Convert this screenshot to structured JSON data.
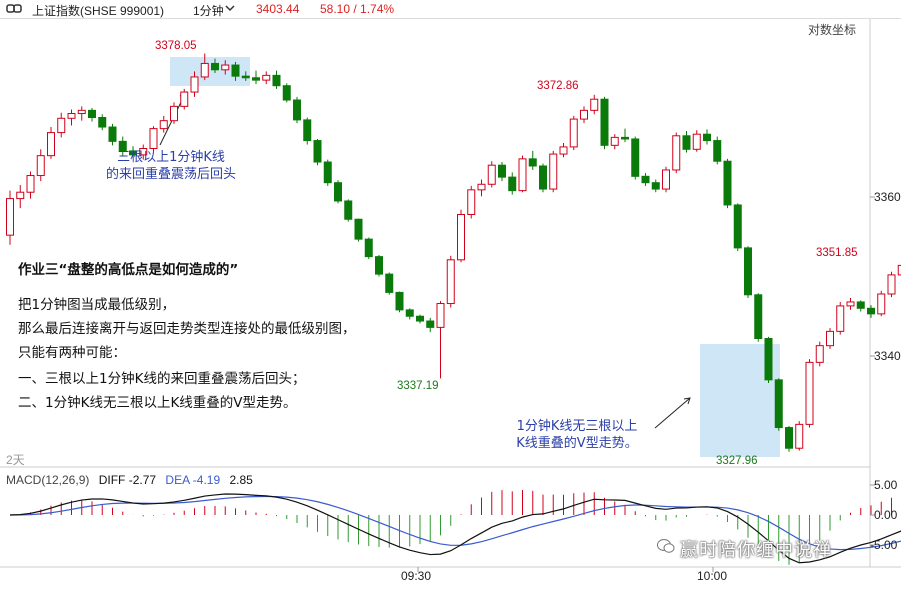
{
  "toolbar": {
    "symbol": "上证指数(SHSE 999001)",
    "period": "1分钟",
    "price": "3403.44",
    "change": "58.10 / 1.74%"
  },
  "chart": {
    "log_scale_button": "对数坐标",
    "days_label": "2天",
    "y_ticks": [
      "3360",
      "3340"
    ],
    "x_ticks": [
      "09:30",
      "10:00"
    ],
    "price_labels": {
      "high1": "3378.05",
      "high2": "3372.86",
      "low1": "3337.19",
      "low2": "3327.96",
      "last": "3351.85"
    },
    "annotation_left": [
      "三根以上1分钟K线",
      "的来回重叠震荡后回头"
    ],
    "annotation_right": [
      "1分钟K线无三根以上",
      "K线重叠的V型走势。"
    ]
  },
  "notes": {
    "title": "作业三“盘整的高低点是如何造成的”",
    "lines": [
      "把1分钟图当成最低级别，",
      "那么最后连接离开与返回走势类型连接处的最低级别图，",
      "只能有两种可能：",
      "一、三根以上1分钟K线的来回重叠震荡后回头；",
      "二、1分钟K线无三根以上K线重叠的V型走势。"
    ]
  },
  "macd": {
    "name": "MACD(12,26,9)",
    "diff": "DIFF -2.77",
    "dea": "DEA -4.19",
    "macd_value": "2.85",
    "y_ticks": [
      "5.00",
      "0.00",
      "-5.00"
    ]
  },
  "watermark": "赢时陪你缠中说禅",
  "colors": {
    "up": "#d0021b",
    "down": "#0a7a0a",
    "highlight": "#cfe6f7",
    "diff_line": "#111111",
    "dea_line": "#3a5bd0"
  },
  "chart_data": {
    "type": "candlestick",
    "candles": [
      {
        "o": 3355.2,
        "h": 3360.8,
        "l": 3354.0,
        "c": 3359.8
      },
      {
        "o": 3359.8,
        "h": 3361.5,
        "l": 3358.6,
        "c": 3360.6
      },
      {
        "o": 3360.6,
        "h": 3363.2,
        "l": 3359.8,
        "c": 3362.7
      },
      {
        "o": 3362.7,
        "h": 3366.0,
        "l": 3362.0,
        "c": 3365.2
      },
      {
        "o": 3365.2,
        "h": 3368.8,
        "l": 3364.8,
        "c": 3368.1
      },
      {
        "o": 3368.1,
        "h": 3370.6,
        "l": 3367.5,
        "c": 3369.9
      },
      {
        "o": 3369.9,
        "h": 3371.0,
        "l": 3369.0,
        "c": 3370.5
      },
      {
        "o": 3370.5,
        "h": 3371.4,
        "l": 3369.6,
        "c": 3370.9
      },
      {
        "o": 3370.9,
        "h": 3371.2,
        "l": 3369.5,
        "c": 3370.0
      },
      {
        "o": 3370.0,
        "h": 3370.4,
        "l": 3368.4,
        "c": 3368.8
      },
      {
        "o": 3368.8,
        "h": 3369.2,
        "l": 3366.5,
        "c": 3367.0
      },
      {
        "o": 3367.0,
        "h": 3367.6,
        "l": 3365.2,
        "c": 3365.8
      },
      {
        "o": 3365.8,
        "h": 3366.4,
        "l": 3364.9,
        "c": 3365.3
      },
      {
        "o": 3365.3,
        "h": 3366.6,
        "l": 3364.7,
        "c": 3366.1
      },
      {
        "o": 3366.1,
        "h": 3368.9,
        "l": 3365.8,
        "c": 3368.6
      },
      {
        "o": 3368.6,
        "h": 3370.2,
        "l": 3368.1,
        "c": 3369.6
      },
      {
        "o": 3369.6,
        "h": 3371.9,
        "l": 3369.2,
        "c": 3371.4
      },
      {
        "o": 3371.4,
        "h": 3373.6,
        "l": 3371.0,
        "c": 3373.2
      },
      {
        "o": 3373.2,
        "h": 3375.8,
        "l": 3372.6,
        "c": 3375.1
      },
      {
        "o": 3375.1,
        "h": 3378.05,
        "l": 3374.7,
        "c": 3376.8
      },
      {
        "o": 3376.8,
        "h": 3377.4,
        "l": 3375.6,
        "c": 3376.0
      },
      {
        "o": 3376.0,
        "h": 3377.2,
        "l": 3375.4,
        "c": 3376.6
      },
      {
        "o": 3376.6,
        "h": 3377.0,
        "l": 3374.6,
        "c": 3375.2
      },
      {
        "o": 3375.2,
        "h": 3375.8,
        "l": 3374.6,
        "c": 3375.0
      },
      {
        "o": 3375.0,
        "h": 3375.9,
        "l": 3374.2,
        "c": 3374.7
      },
      {
        "o": 3374.7,
        "h": 3375.8,
        "l": 3374.2,
        "c": 3375.3
      },
      {
        "o": 3375.3,
        "h": 3375.9,
        "l": 3373.6,
        "c": 3374.0
      },
      {
        "o": 3374.0,
        "h": 3374.3,
        "l": 3371.9,
        "c": 3372.2
      },
      {
        "o": 3372.2,
        "h": 3372.6,
        "l": 3369.3,
        "c": 3369.7
      },
      {
        "o": 3369.7,
        "h": 3370.0,
        "l": 3366.6,
        "c": 3367.1
      },
      {
        "o": 3367.1,
        "h": 3367.3,
        "l": 3364.0,
        "c": 3364.4
      },
      {
        "o": 3364.4,
        "h": 3364.7,
        "l": 3361.4,
        "c": 3361.8
      },
      {
        "o": 3361.8,
        "h": 3362.1,
        "l": 3359.2,
        "c": 3359.5
      },
      {
        "o": 3359.5,
        "h": 3359.7,
        "l": 3356.9,
        "c": 3357.2
      },
      {
        "o": 3357.2,
        "h": 3357.3,
        "l": 3354.4,
        "c": 3354.7
      },
      {
        "o": 3354.7,
        "h": 3354.9,
        "l": 3352.2,
        "c": 3352.5
      },
      {
        "o": 3352.5,
        "h": 3352.7,
        "l": 3350.0,
        "c": 3350.3
      },
      {
        "o": 3350.3,
        "h": 3350.5,
        "l": 3347.7,
        "c": 3348.0
      },
      {
        "o": 3348.0,
        "h": 3348.1,
        "l": 3345.5,
        "c": 3345.8
      },
      {
        "o": 3345.8,
        "h": 3346.0,
        "l": 3344.6,
        "c": 3345.0
      },
      {
        "o": 3345.0,
        "h": 3345.2,
        "l": 3344.1,
        "c": 3344.4
      },
      {
        "o": 3344.4,
        "h": 3344.8,
        "l": 3343.0,
        "c": 3343.6
      },
      {
        "o": 3343.6,
        "h": 3346.9,
        "l": 3337.19,
        "c": 3346.6
      },
      {
        "o": 3346.6,
        "h": 3352.6,
        "l": 3346.1,
        "c": 3352.1
      },
      {
        "o": 3352.1,
        "h": 3358.4,
        "l": 3351.8,
        "c": 3357.8
      },
      {
        "o": 3357.8,
        "h": 3361.4,
        "l": 3357.3,
        "c": 3360.9
      },
      {
        "o": 3360.9,
        "h": 3362.2,
        "l": 3360.1,
        "c": 3361.6
      },
      {
        "o": 3361.6,
        "h": 3364.5,
        "l": 3361.2,
        "c": 3364.0
      },
      {
        "o": 3364.0,
        "h": 3364.4,
        "l": 3362.0,
        "c": 3362.5
      },
      {
        "o": 3362.5,
        "h": 3363.1,
        "l": 3360.3,
        "c": 3360.8
      },
      {
        "o": 3360.8,
        "h": 3365.2,
        "l": 3360.6,
        "c": 3364.8
      },
      {
        "o": 3364.8,
        "h": 3365.8,
        "l": 3363.4,
        "c": 3363.9
      },
      {
        "o": 3363.9,
        "h": 3364.2,
        "l": 3360.6,
        "c": 3361.0
      },
      {
        "o": 3361.0,
        "h": 3365.8,
        "l": 3360.6,
        "c": 3365.4
      },
      {
        "o": 3365.4,
        "h": 3366.8,
        "l": 3365.0,
        "c": 3366.3
      },
      {
        "o": 3366.3,
        "h": 3370.2,
        "l": 3365.9,
        "c": 3369.8
      },
      {
        "o": 3369.8,
        "h": 3371.4,
        "l": 3369.3,
        "c": 3370.9
      },
      {
        "o": 3370.9,
        "h": 3372.86,
        "l": 3370.4,
        "c": 3372.3
      },
      {
        "o": 3372.3,
        "h": 3372.6,
        "l": 3366.0,
        "c": 3366.5
      },
      {
        "o": 3366.5,
        "h": 3367.9,
        "l": 3366.0,
        "c": 3367.5
      },
      {
        "o": 3367.5,
        "h": 3368.6,
        "l": 3366.9,
        "c": 3367.3
      },
      {
        "o": 3367.3,
        "h": 3367.6,
        "l": 3362.2,
        "c": 3362.6
      },
      {
        "o": 3362.6,
        "h": 3363.0,
        "l": 3361.4,
        "c": 3361.8
      },
      {
        "o": 3361.8,
        "h": 3362.2,
        "l": 3360.6,
        "c": 3361.0
      },
      {
        "o": 3361.0,
        "h": 3363.8,
        "l": 3360.6,
        "c": 3363.4
      },
      {
        "o": 3363.4,
        "h": 3368.1,
        "l": 3363.0,
        "c": 3367.7
      },
      {
        "o": 3367.7,
        "h": 3368.3,
        "l": 3365.6,
        "c": 3366.0
      },
      {
        "o": 3366.0,
        "h": 3368.4,
        "l": 3365.7,
        "c": 3367.9
      },
      {
        "o": 3367.9,
        "h": 3368.5,
        "l": 3366.6,
        "c": 3367.1
      },
      {
        "o": 3367.1,
        "h": 3367.6,
        "l": 3364.1,
        "c": 3364.5
      },
      {
        "o": 3364.5,
        "h": 3364.8,
        "l": 3358.6,
        "c": 3359.0
      },
      {
        "o": 3359.0,
        "h": 3359.2,
        "l": 3353.2,
        "c": 3353.6
      },
      {
        "o": 3353.6,
        "h": 3353.8,
        "l": 3347.3,
        "c": 3347.7
      },
      {
        "o": 3347.7,
        "h": 3347.9,
        "l": 3341.8,
        "c": 3342.2
      },
      {
        "o": 3342.2,
        "h": 3342.4,
        "l": 3336.6,
        "c": 3337.0
      },
      {
        "o": 3337.0,
        "h": 3337.2,
        "l": 3330.6,
        "c": 3331.0
      },
      {
        "o": 3331.0,
        "h": 3331.2,
        "l": 3327.96,
        "c": 3328.4
      },
      {
        "o": 3328.4,
        "h": 3331.8,
        "l": 3328.1,
        "c": 3331.4
      },
      {
        "o": 3331.4,
        "h": 3339.6,
        "l": 3331.0,
        "c": 3339.2
      },
      {
        "o": 3339.2,
        "h": 3341.8,
        "l": 3338.7,
        "c": 3341.3
      },
      {
        "o": 3341.3,
        "h": 3343.5,
        "l": 3340.9,
        "c": 3343.1
      },
      {
        "o": 3343.1,
        "h": 3346.8,
        "l": 3342.7,
        "c": 3346.3
      },
      {
        "o": 3346.3,
        "h": 3347.3,
        "l": 3345.8,
        "c": 3346.8
      },
      {
        "o": 3346.8,
        "h": 3347.0,
        "l": 3345.6,
        "c": 3346.0
      },
      {
        "o": 3346.0,
        "h": 3346.4,
        "l": 3344.8,
        "c": 3345.3
      },
      {
        "o": 3345.3,
        "h": 3348.2,
        "l": 3345.0,
        "c": 3347.8
      },
      {
        "o": 3347.8,
        "h": 3350.6,
        "l": 3347.4,
        "c": 3350.2
      },
      {
        "o": 3350.2,
        "h": 3351.85,
        "l": 3349.8,
        "c": 3351.4
      }
    ]
  }
}
